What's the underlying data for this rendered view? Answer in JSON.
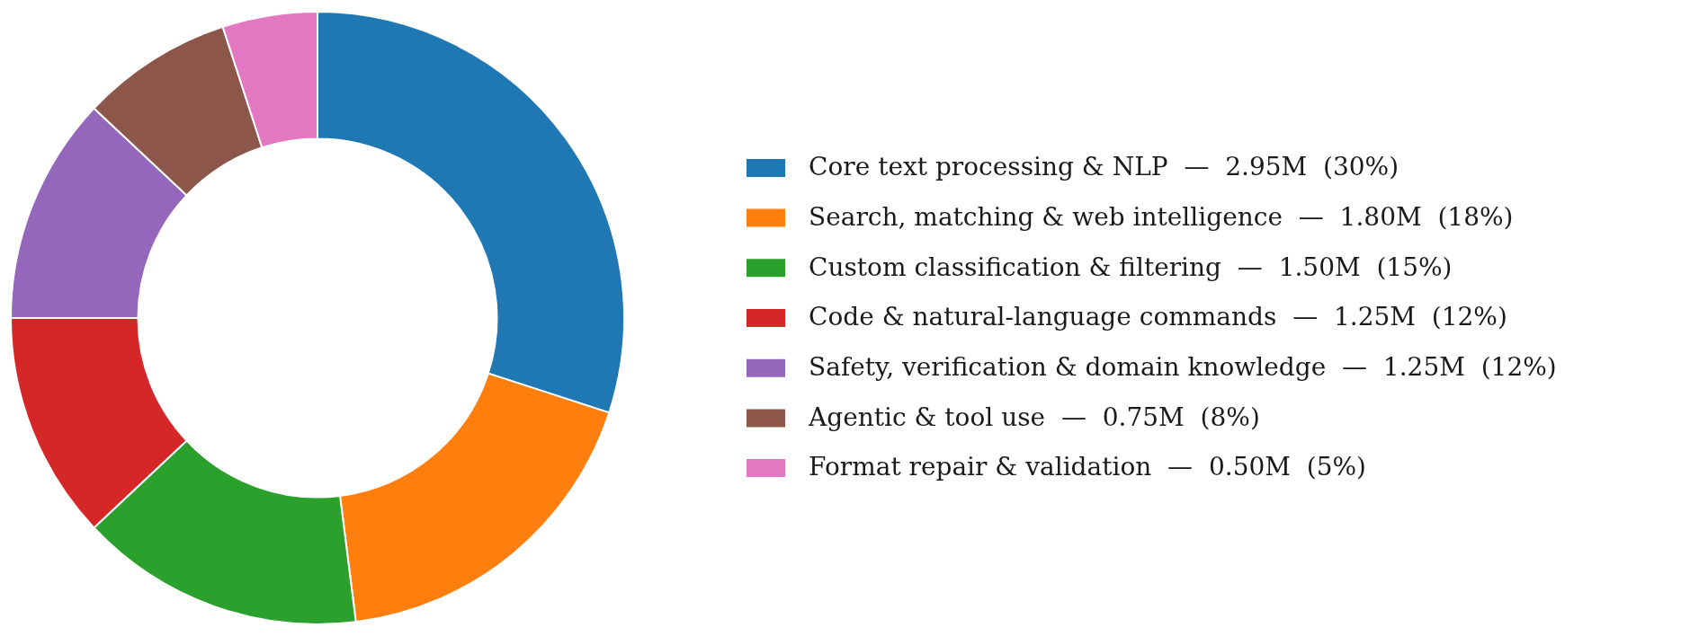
{
  "chart_data": {
    "type": "donut",
    "categories": [
      "Core text processing & NLP  —  2.95M  (30%)",
      "Search, matching & web intelligence  —  1.80M  (18%)",
      "Custom classification & filtering  —  1.50M  (15%)",
      "Code & natural-language commands  —  1.25M  (12%)",
      "Safety, verification & domain knowledge  —  1.25M  (12%)",
      "Agentic & tool use  —  0.75M  (8%)",
      "Format repair & validation  —  0.50M  (5%)"
    ],
    "values": [
      30,
      18,
      15,
      12,
      12,
      8,
      5
    ],
    "colors": [
      "#1f77b4",
      "#ff7f0e",
      "#2ca02c",
      "#d62728",
      "#9467bd",
      "#8c564b",
      "#e377c2"
    ],
    "legend": "right"
  }
}
